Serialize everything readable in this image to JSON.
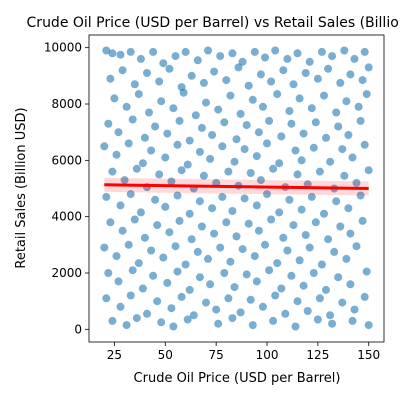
{
  "chart_data": {
    "type": "scatter",
    "title": "Crude Oil Price (USD per Barrel) vs Retail Sales (Billion USD)",
    "xlabel": "Crude Oil Price (USD per Barrel)",
    "ylabel": "Retail Sales (Billion USD)",
    "xlim": [
      12.5,
      157.5
    ],
    "ylim": [
      -450,
      10450
    ],
    "xticks": [
      25,
      50,
      75,
      100,
      125,
      150
    ],
    "yticks": [
      0,
      2000,
      4000,
      6000,
      8000,
      10000
    ],
    "xtick_labels": [
      "25",
      "50",
      "75",
      "100",
      "125",
      "150"
    ],
    "ytick_labels": [
      "0",
      "2000",
      "4000",
      "6000",
      "8000",
      "10000"
    ],
    "grid": false,
    "legend": "none",
    "point_color": "#1f77b4",
    "point_alpha": 0.6,
    "trend_color": "#ff0000",
    "trendline": {
      "x": [
        20,
        150
      ],
      "y": [
        5130,
        5000
      ]
    },
    "points": [
      {
        "x": 21,
        "y": 9900
      },
      {
        "x": 24,
        "y": 9800
      },
      {
        "x": 28,
        "y": 9750
      },
      {
        "x": 33,
        "y": 9850
      },
      {
        "x": 38,
        "y": 9600
      },
      {
        "x": 44,
        "y": 9850
      },
      {
        "x": 49,
        "y": 9450
      },
      {
        "x": 55,
        "y": 9700
      },
      {
        "x": 60,
        "y": 9850
      },
      {
        "x": 66,
        "y": 9550
      },
      {
        "x": 71,
        "y": 9900
      },
      {
        "x": 77,
        "y": 9700
      },
      {
        "x": 83,
        "y": 9800
      },
      {
        "x": 88,
        "y": 9500
      },
      {
        "x": 94,
        "y": 9850
      },
      {
        "x": 99,
        "y": 9650
      },
      {
        "x": 104,
        "y": 9900
      },
      {
        "x": 110,
        "y": 9600
      },
      {
        "x": 115,
        "y": 9800
      },
      {
        "x": 121,
        "y": 9500
      },
      {
        "x": 127,
        "y": 9850
      },
      {
        "x": 132,
        "y": 9700
      },
      {
        "x": 138,
        "y": 9900
      },
      {
        "x": 143,
        "y": 9600
      },
      {
        "x": 148,
        "y": 9850
      },
      {
        "x": 23,
        "y": 8900
      },
      {
        "x": 29,
        "y": 9200
      },
      {
        "x": 35,
        "y": 8700
      },
      {
        "x": 41,
        "y": 9100
      },
      {
        "x": 47,
        "y": 8800
      },
      {
        "x": 52,
        "y": 9250
      },
      {
        "x": 58,
        "y": 8600
      },
      {
        "x": 63,
        "y": 9000
      },
      {
        "x": 69,
        "y": 8750
      },
      {
        "x": 74,
        "y": 9150
      },
      {
        "x": 80,
        "y": 8850
      },
      {
        "x": 86,
        "y": 9300
      },
      {
        "x": 91,
        "y": 8650
      },
      {
        "x": 97,
        "y": 9050
      },
      {
        "x": 102,
        "y": 8800
      },
      {
        "x": 108,
        "y": 9200
      },
      {
        "x": 113,
        "y": 8700
      },
      {
        "x": 119,
        "y": 9100
      },
      {
        "x": 125,
        "y": 8900
      },
      {
        "x": 130,
        "y": 9250
      },
      {
        "x": 136,
        "y": 8750
      },
      {
        "x": 141,
        "y": 9050
      },
      {
        "x": 147,
        "y": 8850
      },
      {
        "x": 150,
        "y": 9300
      },
      {
        "x": 25,
        "y": 8200
      },
      {
        "x": 31,
        "y": 7900
      },
      {
        "x": 37,
        "y": 8350
      },
      {
        "x": 42,
        "y": 7700
      },
      {
        "x": 48,
        "y": 8100
      },
      {
        "x": 54,
        "y": 7850
      },
      {
        "x": 59,
        "y": 8400
      },
      {
        "x": 65,
        "y": 7600
      },
      {
        "x": 70,
        "y": 8050
      },
      {
        "x": 76,
        "y": 7800
      },
      {
        "x": 82,
        "y": 8300
      },
      {
        "x": 87,
        "y": 7650
      },
      {
        "x": 93,
        "y": 8150
      },
      {
        "x": 98,
        "y": 7900
      },
      {
        "x": 105,
        "y": 8350
      },
      {
        "x": 111,
        "y": 7750
      },
      {
        "x": 116,
        "y": 8200
      },
      {
        "x": 122,
        "y": 7850
      },
      {
        "x": 128,
        "y": 8300
      },
      {
        "x": 134,
        "y": 7700
      },
      {
        "x": 139,
        "y": 8100
      },
      {
        "x": 145,
        "y": 7900
      },
      {
        "x": 149,
        "y": 8350
      },
      {
        "x": 22,
        "y": 7300
      },
      {
        "x": 27,
        "y": 7000
      },
      {
        "x": 34,
        "y": 7450
      },
      {
        "x": 40,
        "y": 6800
      },
      {
        "x": 45,
        "y": 7200
      },
      {
        "x": 51,
        "y": 6950
      },
      {
        "x": 57,
        "y": 7400
      },
      {
        "x": 62,
        "y": 6700
      },
      {
        "x": 68,
        "y": 7150
      },
      {
        "x": 73,
        "y": 6900
      },
      {
        "x": 79,
        "y": 7350
      },
      {
        "x": 85,
        "y": 6750
      },
      {
        "x": 90,
        "y": 7250
      },
      {
        "x": 96,
        "y": 7000
      },
      {
        "x": 101,
        "y": 7400
      },
      {
        "x": 107,
        "y": 6850
      },
      {
        "x": 112,
        "y": 7300
      },
      {
        "x": 118,
        "y": 6950
      },
      {
        "x": 124,
        "y": 7350
      },
      {
        "x": 129,
        "y": 6800
      },
      {
        "x": 135,
        "y": 7200
      },
      {
        "x": 140,
        "y": 6900
      },
      {
        "x": 146,
        "y": 7400
      },
      {
        "x": 20,
        "y": 6500
      },
      {
        "x": 26,
        "y": 6200
      },
      {
        "x": 32,
        "y": 6600
      },
      {
        "x": 39,
        "y": 5900
      },
      {
        "x": 43,
        "y": 6350
      },
      {
        "x": 50,
        "y": 6100
      },
      {
        "x": 56,
        "y": 6550
      },
      {
        "x": 61,
        "y": 5850
      },
      {
        "x": 67,
        "y": 6300
      },
      {
        "x": 72,
        "y": 6050
      },
      {
        "x": 78,
        "y": 6500
      },
      {
        "x": 84,
        "y": 5950
      },
      {
        "x": 89,
        "y": 6400
      },
      {
        "x": 95,
        "y": 6150
      },
      {
        "x": 100,
        "y": 6600
      },
      {
        "x": 106,
        "y": 5900
      },
      {
        "x": 114,
        "y": 6350
      },
      {
        "x": 117,
        "y": 6000
      },
      {
        "x": 123,
        "y": 6450
      },
      {
        "x": 131,
        "y": 5950
      },
      {
        "x": 137,
        "y": 6400
      },
      {
        "x": 142,
        "y": 6100
      },
      {
        "x": 148,
        "y": 6550
      },
      {
        "x": 24,
        "y": 5600
      },
      {
        "x": 30,
        "y": 5300
      },
      {
        "x": 36,
        "y": 5700
      },
      {
        "x": 41,
        "y": 5050
      },
      {
        "x": 47,
        "y": 5500
      },
      {
        "x": 53,
        "y": 5250
      },
      {
        "x": 58,
        "y": 5650
      },
      {
        "x": 64,
        "y": 5000
      },
      {
        "x": 69,
        "y": 5450
      },
      {
        "x": 75,
        "y": 5200
      },
      {
        "x": 81,
        "y": 5600
      },
      {
        "x": 86,
        "y": 5100
      },
      {
        "x": 92,
        "y": 5550
      },
      {
        "x": 97,
        "y": 5300
      },
      {
        "x": 103,
        "y": 5700
      },
      {
        "x": 109,
        "y": 5050
      },
      {
        "x": 115,
        "y": 5500
      },
      {
        "x": 120,
        "y": 5150
      },
      {
        "x": 126,
        "y": 5600
      },
      {
        "x": 133,
        "y": 5000
      },
      {
        "x": 138,
        "y": 5450
      },
      {
        "x": 144,
        "y": 5200
      },
      {
        "x": 150,
        "y": 5650
      },
      {
        "x": 21,
        "y": 4700
      },
      {
        "x": 28,
        "y": 4400
      },
      {
        "x": 33,
        "y": 4800
      },
      {
        "x": 38,
        "y": 4150
      },
      {
        "x": 45,
        "y": 4600
      },
      {
        "x": 50,
        "y": 4350
      },
      {
        "x": 56,
        "y": 4750
      },
      {
        "x": 62,
        "y": 4100
      },
      {
        "x": 67,
        "y": 4550
      },
      {
        "x": 73,
        "y": 4300
      },
      {
        "x": 78,
        "y": 4700
      },
      {
        "x": 83,
        "y": 4200
      },
      {
        "x": 89,
        "y": 4650
      },
      {
        "x": 95,
        "y": 4400
      },
      {
        "x": 100,
        "y": 4800
      },
      {
        "x": 106,
        "y": 4150
      },
      {
        "x": 111,
        "y": 4600
      },
      {
        "x": 117,
        "y": 4250
      },
      {
        "x": 122,
        "y": 4700
      },
      {
        "x": 128,
        "y": 4100
      },
      {
        "x": 134,
        "y": 4550
      },
      {
        "x": 140,
        "y": 4300
      },
      {
        "x": 146,
        "y": 4750
      },
      {
        "x": 23,
        "y": 3800
      },
      {
        "x": 29,
        "y": 3500
      },
      {
        "x": 35,
        "y": 3900
      },
      {
        "x": 40,
        "y": 3250
      },
      {
        "x": 46,
        "y": 3700
      },
      {
        "x": 52,
        "y": 3450
      },
      {
        "x": 57,
        "y": 3850
      },
      {
        "x": 63,
        "y": 3200
      },
      {
        "x": 68,
        "y": 3650
      },
      {
        "x": 74,
        "y": 3400
      },
      {
        "x": 80,
        "y": 3800
      },
      {
        "x": 85,
        "y": 3300
      },
      {
        "x": 91,
        "y": 3750
      },
      {
        "x": 96,
        "y": 3500
      },
      {
        "x": 102,
        "y": 3900
      },
      {
        "x": 108,
        "y": 3250
      },
      {
        "x": 113,
        "y": 3700
      },
      {
        "x": 119,
        "y": 3350
      },
      {
        "x": 124,
        "y": 3800
      },
      {
        "x": 130,
        "y": 3200
      },
      {
        "x": 136,
        "y": 3650
      },
      {
        "x": 141,
        "y": 3400
      },
      {
        "x": 147,
        "y": 3850
      },
      {
        "x": 20,
        "y": 2900
      },
      {
        "x": 26,
        "y": 2600
      },
      {
        "x": 32,
        "y": 3000
      },
      {
        "x": 37,
        "y": 2350
      },
      {
        "x": 43,
        "y": 2800
      },
      {
        "x": 49,
        "y": 2550
      },
      {
        "x": 55,
        "y": 2950
      },
      {
        "x": 60,
        "y": 2300
      },
      {
        "x": 66,
        "y": 2750
      },
      {
        "x": 71,
        "y": 2500
      },
      {
        "x": 77,
        "y": 2900
      },
      {
        "x": 82,
        "y": 2400
      },
      {
        "x": 88,
        "y": 2850
      },
      {
        "x": 94,
        "y": 2600
      },
      {
        "x": 99,
        "y": 3000
      },
      {
        "x": 105,
        "y": 2350
      },
      {
        "x": 110,
        "y": 2800
      },
      {
        "x": 116,
        "y": 2450
      },
      {
        "x": 121,
        "y": 2900
      },
      {
        "x": 127,
        "y": 2300
      },
      {
        "x": 133,
        "y": 2750
      },
      {
        "x": 139,
        "y": 2500
      },
      {
        "x": 144,
        "y": 2950
      },
      {
        "x": 22,
        "y": 2000
      },
      {
        "x": 27,
        "y": 1700
      },
      {
        "x": 34,
        "y": 2100
      },
      {
        "x": 39,
        "y": 1450
      },
      {
        "x": 44,
        "y": 1900
      },
      {
        "x": 51,
        "y": 1650
      },
      {
        "x": 56,
        "y": 2050
      },
      {
        "x": 62,
        "y": 1400
      },
      {
        "x": 67,
        "y": 1850
      },
      {
        "x": 72,
        "y": 1600
      },
      {
        "x": 79,
        "y": 2000
      },
      {
        "x": 84,
        "y": 1500
      },
      {
        "x": 90,
        "y": 1950
      },
      {
        "x": 95,
        "y": 1700
      },
      {
        "x": 101,
        "y": 2100
      },
      {
        "x": 107,
        "y": 1450
      },
      {
        "x": 112,
        "y": 1900
      },
      {
        "x": 118,
        "y": 1550
      },
      {
        "x": 123,
        "y": 2000
      },
      {
        "x": 129,
        "y": 1400
      },
      {
        "x": 135,
        "y": 1850
      },
      {
        "x": 141,
        "y": 1600
      },
      {
        "x": 149,
        "y": 2050
      },
      {
        "x": 21,
        "y": 1100
      },
      {
        "x": 28,
        "y": 800
      },
      {
        "x": 33,
        "y": 1200
      },
      {
        "x": 41,
        "y": 550
      },
      {
        "x": 46,
        "y": 1000
      },
      {
        "x": 53,
        "y": 750
      },
      {
        "x": 58,
        "y": 1150
      },
      {
        "x": 64,
        "y": 500
      },
      {
        "x": 70,
        "y": 950
      },
      {
        "x": 75,
        "y": 700
      },
      {
        "x": 81,
        "y": 1100
      },
      {
        "x": 87,
        "y": 600
      },
      {
        "x": 92,
        "y": 1050
      },
      {
        "x": 98,
        "y": 800
      },
      {
        "x": 104,
        "y": 1200
      },
      {
        "x": 109,
        "y": 550
      },
      {
        "x": 115,
        "y": 1000
      },
      {
        "x": 120,
        "y": 650
      },
      {
        "x": 126,
        "y": 1100
      },
      {
        "x": 131,
        "y": 500
      },
      {
        "x": 137,
        "y": 950
      },
      {
        "x": 143,
        "y": 700
      },
      {
        "x": 148,
        "y": 1150
      },
      {
        "x": 24,
        "y": 300
      },
      {
        "x": 31,
        "y": 150
      },
      {
        "x": 36,
        "y": 400
      },
      {
        "x": 48,
        "y": 250
      },
      {
        "x": 54,
        "y": 100
      },
      {
        "x": 61,
        "y": 350
      },
      {
        "x": 76,
        "y": 200
      },
      {
        "x": 83,
        "y": 400
      },
      {
        "x": 93,
        "y": 150
      },
      {
        "x": 103,
        "y": 300
      },
      {
        "x": 114,
        "y": 100
      },
      {
        "x": 125,
        "y": 350
      },
      {
        "x": 132,
        "y": 200
      },
      {
        "x": 142,
        "y": 300
      },
      {
        "x": 150,
        "y": 150
      }
    ]
  }
}
